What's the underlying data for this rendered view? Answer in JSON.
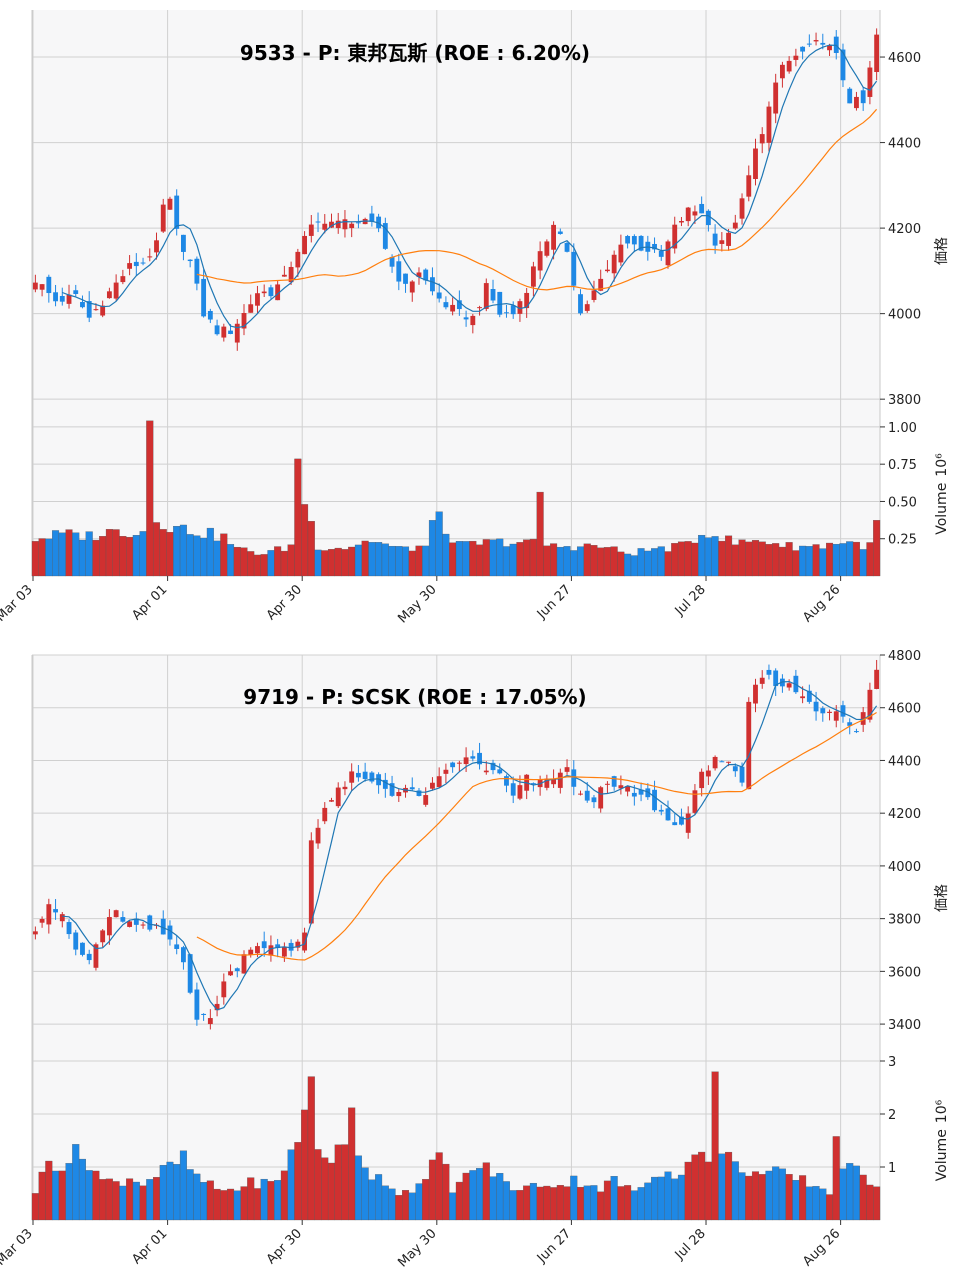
{
  "colors": {
    "up": "#d03030",
    "down": "#1e88e5",
    "ma_short": "#1f77b4",
    "ma_long": "#ff7f0e",
    "panel_bg": "#f7f7f8",
    "grid": "#d0d0d0"
  },
  "chart_data": [
    {
      "type": "candlestick",
      "title": "9533 - P: 東邦瓦斯 (ROE : 6.20%)",
      "ylabel": "価格",
      "volume_label": "Volume",
      "volume_unit": "10⁶",
      "price_ylim": [
        3770,
        4710
      ],
      "price_ticks": [
        3800,
        4000,
        4200,
        4400,
        4600
      ],
      "volume_ylim": [
        0,
        1.1
      ],
      "volume_ticks": [
        "0.25",
        "0.50",
        "0.75",
        "1.00"
      ],
      "volume_tick_values": [
        0.25,
        0.5,
        0.75,
        1.0
      ],
      "x_ticks": [
        "Mar 03",
        "Apr 01",
        "Apr 30",
        "May 30",
        "Jun 27",
        "Jul 28",
        "Aug 26"
      ],
      "x_tick_index": [
        0,
        20,
        40,
        60,
        80,
        100,
        120
      ],
      "n_bars": 126,
      "close_anchors": [
        [
          0,
          4080
        ],
        [
          3,
          4030
        ],
        [
          6,
          4040
        ],
        [
          8,
          3990
        ],
        [
          10,
          4030
        ],
        [
          12,
          4070
        ],
        [
          14,
          4110
        ],
        [
          16,
          4120
        ],
        [
          18,
          4160
        ],
        [
          19,
          4250
        ],
        [
          20,
          4260
        ],
        [
          21,
          4190
        ],
        [
          23,
          4120
        ],
        [
          25,
          4000
        ],
        [
          27,
          3960
        ],
        [
          29,
          3960
        ],
        [
          31,
          4000
        ],
        [
          33,
          4050
        ],
        [
          35,
          4050
        ],
        [
          37,
          4080
        ],
        [
          39,
          4150
        ],
        [
          41,
          4200
        ],
        [
          43,
          4220
        ],
        [
          45,
          4210
        ],
        [
          47,
          4220
        ],
        [
          49,
          4210
        ],
        [
          51,
          4200
        ],
        [
          53,
          4110
        ],
        [
          55,
          4060
        ],
        [
          57,
          4100
        ],
        [
          59,
          4050
        ],
        [
          61,
          4020
        ],
        [
          63,
          4000
        ],
        [
          65,
          3990
        ],
        [
          67,
          4060
        ],
        [
          69,
          4000
        ],
        [
          71,
          4000
        ],
        [
          73,
          4060
        ],
        [
          75,
          4150
        ],
        [
          77,
          4200
        ],
        [
          79,
          4150
        ],
        [
          81,
          4000
        ],
        [
          83,
          4050
        ],
        [
          85,
          4100
        ],
        [
          87,
          4170
        ],
        [
          89,
          4160
        ],
        [
          91,
          4150
        ],
        [
          93,
          4130
        ],
        [
          95,
          4200
        ],
        [
          97,
          4240
        ],
        [
          99,
          4240
        ],
        [
          101,
          4170
        ],
        [
          103,
          4180
        ],
        [
          105,
          4260
        ],
        [
          107,
          4380
        ],
        [
          109,
          4480
        ],
        [
          111,
          4580
        ],
        [
          113,
          4600
        ],
        [
          115,
          4620
        ],
        [
          117,
          4640
        ],
        [
          119,
          4600
        ],
        [
          121,
          4500
        ],
        [
          123,
          4490
        ],
        [
          125,
          4650
        ]
      ],
      "volume_anchors": [
        [
          0,
          0.25
        ],
        [
          4,
          0.28
        ],
        [
          8,
          0.27
        ],
        [
          12,
          0.3
        ],
        [
          16,
          0.3
        ],
        [
          17,
          1.06
        ],
        [
          18,
          0.4
        ],
        [
          20,
          0.33
        ],
        [
          24,
          0.3
        ],
        [
          28,
          0.26
        ],
        [
          30,
          0.18
        ],
        [
          34,
          0.15
        ],
        [
          38,
          0.2
        ],
        [
          39,
          0.82
        ],
        [
          40,
          0.5
        ],
        [
          42,
          0.2
        ],
        [
          46,
          0.19
        ],
        [
          50,
          0.24
        ],
        [
          54,
          0.18
        ],
        [
          58,
          0.2
        ],
        [
          60,
          0.45
        ],
        [
          62,
          0.2
        ],
        [
          66,
          0.22
        ],
        [
          70,
          0.23
        ],
        [
          74,
          0.22
        ],
        [
          75,
          0.58
        ],
        [
          76,
          0.2
        ],
        [
          80,
          0.2
        ],
        [
          84,
          0.2
        ],
        [
          88,
          0.15
        ],
        [
          92,
          0.18
        ],
        [
          96,
          0.2
        ],
        [
          100,
          0.3
        ],
        [
          104,
          0.22
        ],
        [
          108,
          0.24
        ],
        [
          112,
          0.2
        ],
        [
          116,
          0.2
        ],
        [
          120,
          0.23
        ],
        [
          124,
          0.2
        ],
        [
          125,
          0.35
        ]
      ]
    },
    {
      "type": "candlestick",
      "title": "9719 - P: SCSK (ROE : 17.05%)",
      "ylabel": "価格",
      "volume_label": "Volume",
      "volume_unit": "10⁶",
      "price_ylim": [
        3260,
        4800
      ],
      "price_ticks": [
        3400,
        3600,
        3800,
        4000,
        4200,
        4400,
        4600,
        4800
      ],
      "volume_ylim": [
        0,
        3.0
      ],
      "volume_ticks": [
        "1",
        "2",
        "3"
      ],
      "volume_tick_values": [
        1,
        2,
        3
      ],
      "x_ticks": [
        "Mar 03",
        "Apr 01",
        "Apr 30",
        "May 30",
        "Jun 27",
        "Jul 28",
        "Aug 26"
      ],
      "x_tick_index": [
        0,
        20,
        40,
        60,
        80,
        100,
        120
      ],
      "n_bars": 126,
      "close_anchors": [
        [
          0,
          3770
        ],
        [
          2,
          3860
        ],
        [
          4,
          3800
        ],
        [
          6,
          3680
        ],
        [
          8,
          3640
        ],
        [
          10,
          3760
        ],
        [
          12,
          3820
        ],
        [
          14,
          3780
        ],
        [
          16,
          3760
        ],
        [
          18,
          3760
        ],
        [
          20,
          3720
        ],
        [
          22,
          3650
        ],
        [
          24,
          3420
        ],
        [
          26,
          3420
        ],
        [
          28,
          3560
        ],
        [
          30,
          3620
        ],
        [
          32,
          3700
        ],
        [
          34,
          3700
        ],
        [
          36,
          3680
        ],
        [
          38,
          3680
        ],
        [
          40,
          3750
        ],
        [
          41,
          4100
        ],
        [
          43,
          4220
        ],
        [
          45,
          4280
        ],
        [
          47,
          4340
        ],
        [
          49,
          4320
        ],
        [
          51,
          4310
        ],
        [
          53,
          4280
        ],
        [
          55,
          4290
        ],
        [
          57,
          4260
        ],
        [
          59,
          4300
        ],
        [
          61,
          4350
        ],
        [
          63,
          4400
        ],
        [
          65,
          4400
        ],
        [
          67,
          4370
        ],
        [
          69,
          4340
        ],
        [
          71,
          4260
        ],
        [
          73,
          4330
        ],
        [
          75,
          4310
        ],
        [
          77,
          4340
        ],
        [
          79,
          4360
        ],
        [
          81,
          4260
        ],
        [
          83,
          4260
        ],
        [
          85,
          4300
        ],
        [
          87,
          4300
        ],
        [
          89,
          4270
        ],
        [
          91,
          4250
        ],
        [
          93,
          4200
        ],
        [
          95,
          4150
        ],
        [
          97,
          4200
        ],
        [
          99,
          4340
        ],
        [
          101,
          4420
        ],
        [
          103,
          4380
        ],
        [
          105,
          4300
        ],
        [
          106,
          4620
        ],
        [
          108,
          4720
        ],
        [
          110,
          4700
        ],
        [
          112,
          4680
        ],
        [
          114,
          4650
        ],
        [
          116,
          4600
        ],
        [
          118,
          4590
        ],
        [
          120,
          4560
        ],
        [
          122,
          4500
        ],
        [
          123,
          4590
        ],
        [
          125,
          4740
        ]
      ],
      "volume_anchors": [
        [
          0,
          0.55
        ],
        [
          2,
          1.1
        ],
        [
          4,
          1.05
        ],
        [
          6,
          1.25
        ],
        [
          8,
          1.1
        ],
        [
          10,
          0.75
        ],
        [
          12,
          0.7
        ],
        [
          14,
          0.8
        ],
        [
          16,
          0.7
        ],
        [
          18,
          0.85
        ],
        [
          20,
          1.0
        ],
        [
          22,
          1.15
        ],
        [
          24,
          0.8
        ],
        [
          26,
          0.65
        ],
        [
          28,
          0.55
        ],
        [
          30,
          0.6
        ],
        [
          32,
          0.7
        ],
        [
          36,
          0.7
        ],
        [
          40,
          1.9
        ],
        [
          41,
          2.75
        ],
        [
          42,
          1.3
        ],
        [
          44,
          1.2
        ],
        [
          46,
          1.35
        ],
        [
          47,
          2.0
        ],
        [
          48,
          1.3
        ],
        [
          50,
          0.85
        ],
        [
          52,
          0.75
        ],
        [
          54,
          0.5
        ],
        [
          56,
          0.6
        ],
        [
          58,
          0.7
        ],
        [
          60,
          1.3
        ],
        [
          62,
          0.6
        ],
        [
          64,
          0.8
        ],
        [
          66,
          1.05
        ],
        [
          68,
          0.9
        ],
        [
          70,
          0.7
        ],
        [
          72,
          0.55
        ],
        [
          74,
          0.65
        ],
        [
          76,
          0.7
        ],
        [
          78,
          0.65
        ],
        [
          80,
          0.75
        ],
        [
          82,
          0.7
        ],
        [
          84,
          0.6
        ],
        [
          86,
          0.75
        ],
        [
          88,
          0.6
        ],
        [
          90,
          0.55
        ],
        [
          92,
          0.85
        ],
        [
          94,
          1.0
        ],
        [
          96,
          0.8
        ],
        [
          98,
          1.4
        ],
        [
          99,
          1.25
        ],
        [
          100,
          1.0
        ],
        [
          101,
          2.7
        ],
        [
          102,
          1.4
        ],
        [
          104,
          1.0
        ],
        [
          106,
          0.95
        ],
        [
          108,
          0.85
        ],
        [
          110,
          0.9
        ],
        [
          112,
          0.8
        ],
        [
          114,
          0.75
        ],
        [
          116,
          0.65
        ],
        [
          118,
          0.5
        ],
        [
          119,
          1.75
        ],
        [
          120,
          1.0
        ],
        [
          122,
          0.9
        ],
        [
          124,
          0.75
        ],
        [
          125,
          0.7
        ]
      ]
    }
  ]
}
